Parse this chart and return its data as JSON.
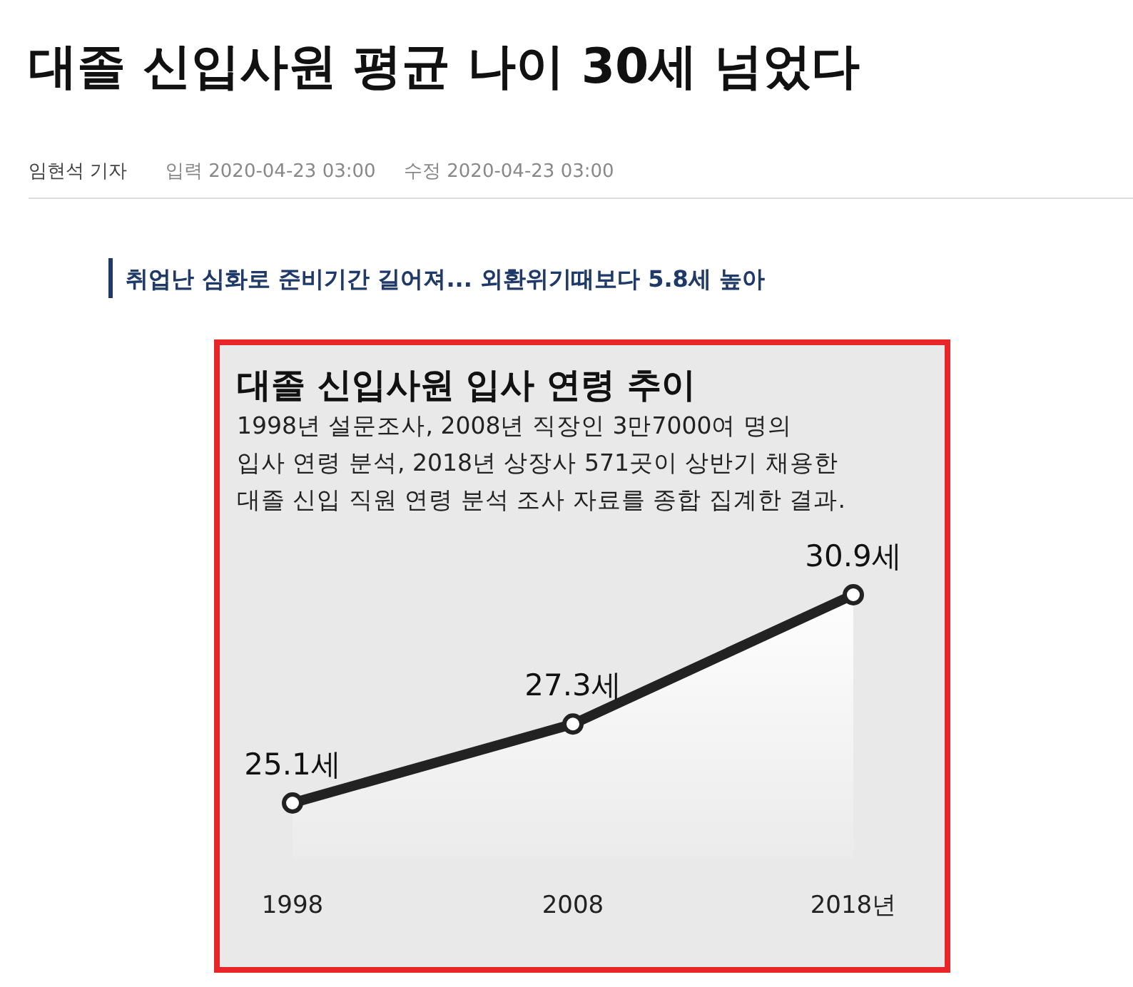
{
  "chart_data": {
    "type": "area",
    "title": "대졸 신입사원 입사 연령 추이",
    "subtitle": "1998년 설문조사, 2008년 직장인 3만7000여 명의\n입사 연령 분석, 2018년 상장사 571곳이 상반기 채용한\n대졸 신입 직원 연령 분석 조사 자료를 종합 집계한 결과.",
    "annotations": [
      "대졸 신입사원 평균 나이 30세 넘었다",
      "임현석 기자",
      "입력 2020-04-23 03:00",
      "수정 2020-04-23 03:00",
      "취업난 심화로 준비기간 길어져... 외환위기때보다 5.8세 높아"
    ],
    "categories": [
      "1998",
      "2008",
      "2018년"
    ],
    "series": [
      {
        "color": "#222222",
        "values": [
          25.1,
          27.3,
          30.9
        ],
        "value_labels": [
          "25.1세",
          "27.3세",
          "30.9세"
        ]
      }
    ],
    "marker": "circle"
  }
}
